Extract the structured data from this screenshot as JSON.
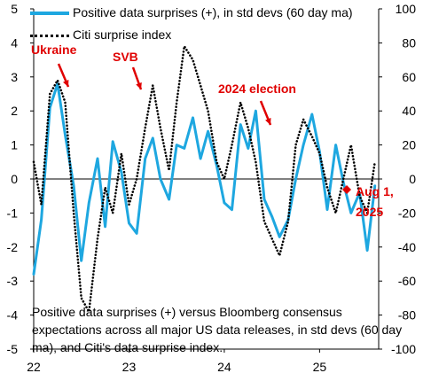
{
  "chart_data": {
    "type": "line",
    "x_axis": {
      "ticks": [
        "22",
        "23",
        "24",
        "25"
      ],
      "range": [
        "2022-01",
        "2025-08"
      ]
    },
    "y_left": {
      "range": [
        -5,
        5
      ],
      "ticks": [
        5,
        4,
        3,
        2,
        1,
        0,
        -1,
        -2,
        -3,
        -4,
        -5
      ]
    },
    "y_right": {
      "range": [
        -100,
        100
      ],
      "ticks": [
        100,
        80,
        60,
        40,
        20,
        0,
        -20,
        -40,
        -60,
        -80,
        -100
      ]
    },
    "grid": false,
    "legend_position": "top-left",
    "series": [
      {
        "name": "Positive data surprises (+), in std devs (60 day ma)",
        "axis": "left",
        "color": "#1ea7e0",
        "style": "solid",
        "x": [
          2022.0,
          2022.08,
          2022.17,
          2022.25,
          2022.33,
          2022.42,
          2022.5,
          2022.58,
          2022.67,
          2022.75,
          2022.83,
          2022.92,
          2023.0,
          2023.08,
          2023.17,
          2023.25,
          2023.33,
          2023.42,
          2023.5,
          2023.58,
          2023.67,
          2023.75,
          2023.83,
          2023.92,
          2024.0,
          2024.08,
          2024.17,
          2024.25,
          2024.33,
          2024.42,
          2024.5,
          2024.58,
          2024.67,
          2024.75,
          2024.83,
          2024.92,
          2025.0,
          2025.08,
          2025.17,
          2025.25,
          2025.33,
          2025.42,
          2025.5,
          2025.58
        ],
        "values": [
          -2.8,
          -1.2,
          2.1,
          2.8,
          1.3,
          -0.2,
          -2.4,
          -0.7,
          0.6,
          -1.4,
          1.1,
          0.2,
          -1.3,
          -1.6,
          0.6,
          1.2,
          0.0,
          -0.6,
          1.0,
          0.9,
          1.8,
          0.6,
          1.4,
          0.4,
          -0.7,
          -0.9,
          1.6,
          0.9,
          2.0,
          -0.6,
          -1.1,
          -1.7,
          -1.2,
          0.0,
          1.0,
          1.9,
          0.8,
          -0.9,
          1.0,
          -0.1,
          -1.0,
          -0.4,
          -2.1,
          -0.2
        ]
      },
      {
        "name": "Citi surprise index",
        "axis": "right",
        "color": "#000000",
        "style": "dotted",
        "x": [
          2022.0,
          2022.08,
          2022.17,
          2022.25,
          2022.33,
          2022.42,
          2022.5,
          2022.58,
          2022.67,
          2022.75,
          2022.83,
          2022.92,
          2023.0,
          2023.08,
          2023.17,
          2023.25,
          2023.33,
          2023.42,
          2023.5,
          2023.58,
          2023.67,
          2023.75,
          2023.83,
          2023.92,
          2024.0,
          2024.08,
          2024.17,
          2024.25,
          2024.33,
          2024.42,
          2024.5,
          2024.58,
          2024.67,
          2024.75,
          2024.83,
          2024.92,
          2025.0,
          2025.08,
          2025.17,
          2025.25,
          2025.33,
          2025.42,
          2025.5,
          2025.58
        ],
        "values": [
          10,
          -15,
          50,
          58,
          45,
          -20,
          -70,
          -78,
          -35,
          -5,
          -20,
          15,
          -15,
          0,
          30,
          55,
          30,
          5,
          45,
          78,
          70,
          55,
          40,
          10,
          0,
          20,
          45,
          30,
          10,
          -25,
          -35,
          -45,
          -25,
          20,
          35,
          25,
          15,
          -5,
          -20,
          0,
          20,
          -10,
          -20,
          10
        ]
      }
    ],
    "annotations": [
      {
        "text": "Ukraine",
        "color": "#e00000"
      },
      {
        "text": "SVB",
        "color": "#e00000"
      },
      {
        "text": "2024 election",
        "color": "#e00000"
      },
      {
        "text": "Aug 1, 2025",
        "color": "#e00000"
      }
    ],
    "caption": "Positive data surprises (+) versus Bloomberg consensus expectations across all major US data releases, in std devs (60 day ma), and Citi's data surprise index."
  },
  "labels": {
    "legend_blue": "Positive data surprises (+), in std devs (60 day ma)",
    "legend_dots": "Citi surprise index",
    "ukraine": "Ukraine",
    "svb": "SVB",
    "election": "2024 election",
    "aug_line1": "Aug 1,",
    "aug_line2": "2025"
  }
}
